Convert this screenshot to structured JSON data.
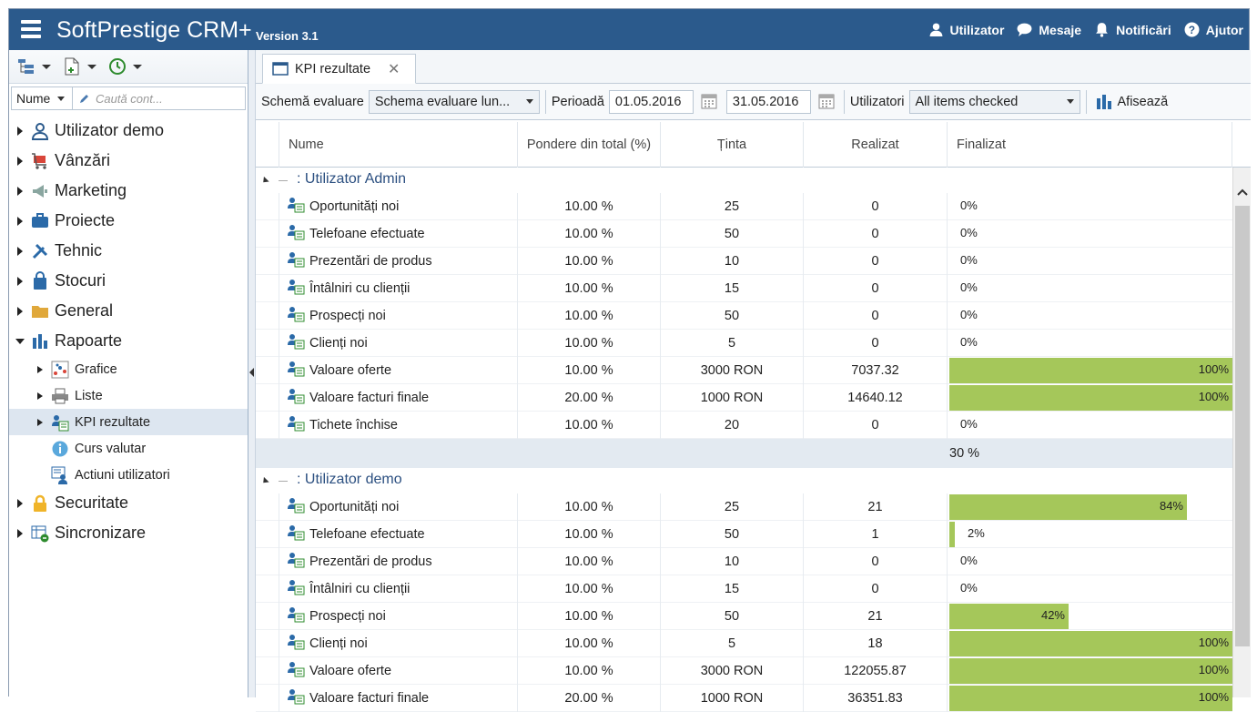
{
  "topbar": {
    "title": "SoftPrestige CRM+",
    "version": "Version 3.1",
    "actions": [
      {
        "label": "Utilizator",
        "icon": "user-icon"
      },
      {
        "label": "Mesaje",
        "icon": "chat-icon"
      },
      {
        "label": "Notificări",
        "icon": "bell-icon"
      },
      {
        "label": "Ajutor",
        "icon": "help-icon"
      }
    ]
  },
  "sidebar": {
    "search_field": "Nume",
    "search_placeholder": "Caută cont...",
    "items": [
      {
        "label": "Utilizator demo",
        "icon": "user-icon"
      },
      {
        "label": "Vânzări",
        "icon": "cart-icon"
      },
      {
        "label": "Marketing",
        "icon": "megaphone-icon"
      },
      {
        "label": "Proiecte",
        "icon": "briefcase-icon"
      },
      {
        "label": "Tehnic",
        "icon": "tools-icon"
      },
      {
        "label": "Stocuri",
        "icon": "bag-icon"
      },
      {
        "label": "General",
        "icon": "folder-icon"
      },
      {
        "label": "Rapoarte",
        "icon": "bar-chart-icon"
      },
      {
        "label": "Securitate",
        "icon": "lock-icon"
      },
      {
        "label": "Sincronizare",
        "icon": "sync-icon"
      }
    ],
    "rapoarte_children": [
      {
        "label": "Grafice",
        "icon": "chart-grid-icon"
      },
      {
        "label": "Liste",
        "icon": "printer-icon"
      },
      {
        "label": "KPI rezultate",
        "icon": "kpi-users-icon"
      },
      {
        "label": "Curs valutar",
        "icon": "info-icon"
      },
      {
        "label": "Actiuni utilizatori",
        "icon": "user-actions-icon"
      }
    ]
  },
  "tab": {
    "label": "KPI rezultate"
  },
  "filters": {
    "schema_label": "Schemă evaluare",
    "schema_value": "Schema evaluare lun...",
    "perioada_label": "Perioadă",
    "date_from": "01.05.2016",
    "date_to": "31.05.2016",
    "utilizatori_label": "Utilizatori",
    "utilizatori_value": "All items checked",
    "afiseaza_label": "Afisează"
  },
  "columns": {
    "nume": "Nume",
    "pondere": "Pondere din total (%)",
    "tinta": "Ținta",
    "realizat": "Realizat",
    "finalizat": "Finalizat"
  },
  "groups": [
    {
      "title": ": Utilizator Admin",
      "summary": "30 %",
      "rows": [
        {
          "nume": "Oportunități noi",
          "pondere": "10.00 %",
          "tinta": "25",
          "realizat": "0",
          "finalizat": "0%",
          "pct": 0
        },
        {
          "nume": "Telefoane efectuate",
          "pondere": "10.00 %",
          "tinta": "50",
          "realizat": "0",
          "finalizat": "0%",
          "pct": 0
        },
        {
          "nume": "Prezentări de produs",
          "pondere": "10.00 %",
          "tinta": "10",
          "realizat": "0",
          "finalizat": "0%",
          "pct": 0
        },
        {
          "nume": "Întâlniri cu clienții",
          "pondere": "10.00 %",
          "tinta": "15",
          "realizat": "0",
          "finalizat": "0%",
          "pct": 0
        },
        {
          "nume": "Prospecți noi",
          "pondere": "10.00 %",
          "tinta": "50",
          "realizat": "0",
          "finalizat": "0%",
          "pct": 0
        },
        {
          "nume": "Clienți noi",
          "pondere": "10.00 %",
          "tinta": "5",
          "realizat": "0",
          "finalizat": "0%",
          "pct": 0
        },
        {
          "nume": "Valoare oferte",
          "pondere": "10.00 %",
          "tinta": "3000 RON",
          "realizat": "7037.32",
          "finalizat": "100%",
          "pct": 100
        },
        {
          "nume": "Valoare facturi finale",
          "pondere": "20.00 %",
          "tinta": "1000 RON",
          "realizat": "14640.12",
          "finalizat": "100%",
          "pct": 100
        },
        {
          "nume": "Tichete închise",
          "pondere": "10.00 %",
          "tinta": "20",
          "realizat": "0",
          "finalizat": "0%",
          "pct": 0
        }
      ]
    },
    {
      "title": ": Utilizator demo",
      "summary": "",
      "rows": [
        {
          "nume": "Oportunități noi",
          "pondere": "10.00 %",
          "tinta": "25",
          "realizat": "21",
          "finalizat": "84%",
          "pct": 84
        },
        {
          "nume": "Telefoane efectuate",
          "pondere": "10.00 %",
          "tinta": "50",
          "realizat": "1",
          "finalizat": "2%",
          "pct": 2
        },
        {
          "nume": "Prezentări de produs",
          "pondere": "10.00 %",
          "tinta": "10",
          "realizat": "0",
          "finalizat": "0%",
          "pct": 0
        },
        {
          "nume": "Întâlniri cu clienții",
          "pondere": "10.00 %",
          "tinta": "15",
          "realizat": "0",
          "finalizat": "0%",
          "pct": 0
        },
        {
          "nume": "Prospecți noi",
          "pondere": "10.00 %",
          "tinta": "50",
          "realizat": "21",
          "finalizat": "42%",
          "pct": 42
        },
        {
          "nume": "Clienți noi",
          "pondere": "10.00 %",
          "tinta": "5",
          "realizat": "18",
          "finalizat": "100%",
          "pct": 100
        },
        {
          "nume": "Valoare oferte",
          "pondere": "10.00 %",
          "tinta": "3000 RON",
          "realizat": "122055.87",
          "finalizat": "100%",
          "pct": 100
        },
        {
          "nume": "Valoare facturi finale",
          "pondere": "20.00 %",
          "tinta": "1000 RON",
          "realizat": "36351.83",
          "finalizat": "100%",
          "pct": 100
        }
      ]
    }
  ],
  "colors": {
    "header_bg": "#2b5a8c",
    "bar_green": "#a5c75a",
    "group_text": "#2b4f80"
  }
}
